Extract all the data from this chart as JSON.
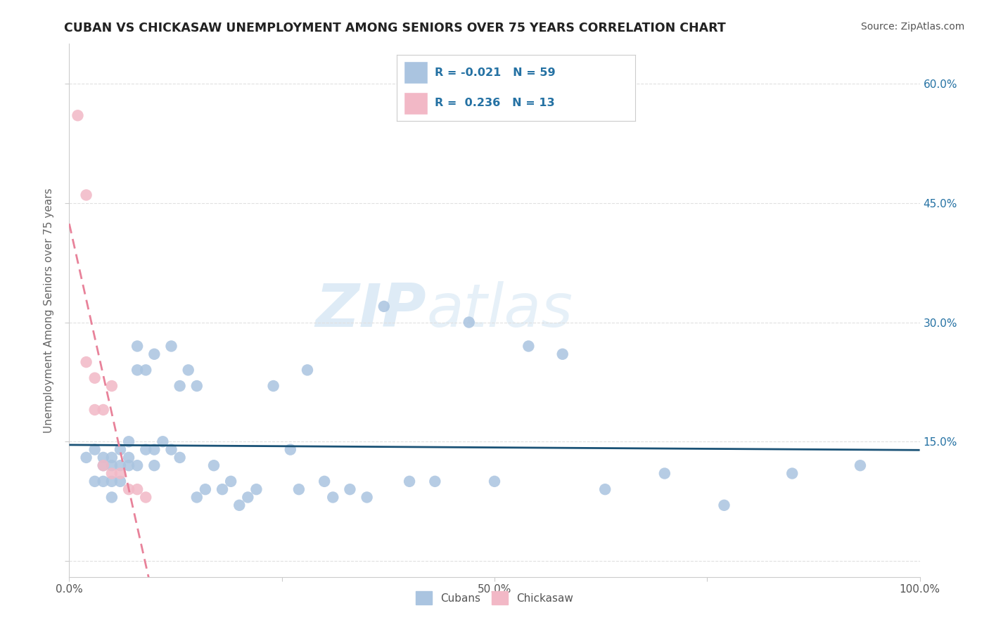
{
  "title": "CUBAN VS CHICKASAW UNEMPLOYMENT AMONG SENIORS OVER 75 YEARS CORRELATION CHART",
  "source": "Source: ZipAtlas.com",
  "ylabel": "Unemployment Among Seniors over 75 years",
  "xlim": [
    0.0,
    1.0
  ],
  "ylim": [
    -0.02,
    0.65
  ],
  "xticks": [
    0.0,
    0.25,
    0.5,
    0.75,
    1.0
  ],
  "xtick_labels": [
    "0.0%",
    "",
    "50.0%",
    "",
    "100.0%"
  ],
  "yticks": [
    0.0,
    0.15,
    0.3,
    0.45,
    0.6
  ],
  "ytick_labels": [
    "",
    "",
    "",
    "",
    ""
  ],
  "right_ytick_labels": [
    "60.0%",
    "45.0%",
    "30.0%",
    "15.0%"
  ],
  "background_color": "#ffffff",
  "grid_color": "#e0e0e0",
  "cubans_color": "#aac4e0",
  "chickasaw_color": "#f2b8c6",
  "cubans_line_color": "#1a5276",
  "chickasaw_line_color": "#e8829a",
  "legend_text_color": "#2471a3",
  "cubans_R": -0.021,
  "cubans_N": 59,
  "chickasaw_R": 0.236,
  "chickasaw_N": 13,
  "watermark_zip": "ZIP",
  "watermark_atlas": "atlas",
  "cubans_x": [
    0.02,
    0.03,
    0.03,
    0.04,
    0.04,
    0.04,
    0.05,
    0.05,
    0.05,
    0.05,
    0.06,
    0.06,
    0.06,
    0.07,
    0.07,
    0.07,
    0.08,
    0.08,
    0.08,
    0.09,
    0.09,
    0.1,
    0.1,
    0.1,
    0.11,
    0.12,
    0.12,
    0.13,
    0.13,
    0.14,
    0.15,
    0.15,
    0.16,
    0.17,
    0.18,
    0.19,
    0.2,
    0.21,
    0.22,
    0.24,
    0.26,
    0.27,
    0.28,
    0.3,
    0.31,
    0.33,
    0.35,
    0.37,
    0.4,
    0.43,
    0.47,
    0.5,
    0.54,
    0.58,
    0.63,
    0.7,
    0.77,
    0.85,
    0.93
  ],
  "cubans_y": [
    0.13,
    0.14,
    0.1,
    0.13,
    0.12,
    0.1,
    0.13,
    0.12,
    0.1,
    0.08,
    0.14,
    0.12,
    0.1,
    0.15,
    0.13,
    0.12,
    0.27,
    0.24,
    0.12,
    0.24,
    0.14,
    0.26,
    0.14,
    0.12,
    0.15,
    0.27,
    0.14,
    0.22,
    0.13,
    0.24,
    0.22,
    0.08,
    0.09,
    0.12,
    0.09,
    0.1,
    0.07,
    0.08,
    0.09,
    0.22,
    0.14,
    0.09,
    0.24,
    0.1,
    0.08,
    0.09,
    0.08,
    0.32,
    0.1,
    0.1,
    0.3,
    0.1,
    0.27,
    0.26,
    0.09,
    0.11,
    0.07,
    0.11,
    0.12
  ],
  "chickasaw_x": [
    0.01,
    0.02,
    0.02,
    0.03,
    0.03,
    0.04,
    0.04,
    0.05,
    0.05,
    0.06,
    0.07,
    0.08,
    0.09
  ],
  "chickasaw_y": [
    0.56,
    0.46,
    0.25,
    0.23,
    0.19,
    0.19,
    0.12,
    0.22,
    0.11,
    0.11,
    0.09,
    0.09,
    0.08
  ]
}
